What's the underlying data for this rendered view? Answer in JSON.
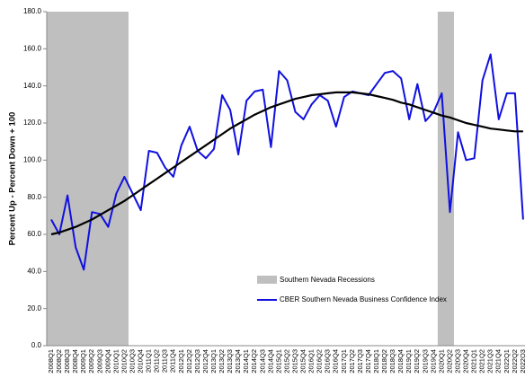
{
  "chart_data": {
    "type": "line",
    "y_label": "Percent Up - Percent Down + 100",
    "categories": [
      "2008Q1",
      "2008Q2",
      "2008Q3",
      "2008Q4",
      "2009Q1",
      "2009Q2",
      "2009Q3",
      "2009Q4",
      "2010Q1",
      "2010Q2",
      "2010Q3",
      "2010Q4",
      "2011Q1",
      "2011Q2",
      "2011Q3",
      "2011Q4",
      "2012Q1",
      "2012Q2",
      "2012Q3",
      "2012Q4",
      "2013Q1",
      "2013Q2",
      "2013Q3",
      "2013Q4",
      "2014Q1",
      "2014Q2",
      "2014Q3",
      "2014Q4",
      "2015Q1",
      "2015Q2",
      "2015Q3",
      "2015Q4",
      "2016Q1",
      "2016Q2",
      "2016Q3",
      "2016Q4",
      "2017Q1",
      "2017Q2",
      "2017Q3",
      "2017Q4",
      "2018Q1",
      "2018Q2",
      "2018Q3",
      "2018Q4",
      "2019Q1",
      "2019Q2",
      "2019Q3",
      "2019Q4",
      "2020Q1",
      "2020Q2",
      "2020Q3",
      "2020Q4",
      "2021Q1",
      "2021Q2",
      "2021Q3",
      "2021Q4",
      "2022Q1",
      "2022Q2",
      "2022Q3"
    ],
    "series": [
      {
        "name": "CBER Southern Nevada Business Confidence Index",
        "color": "#1010e0",
        "values": [
          68,
          60,
          81,
          53,
          41,
          72,
          71,
          64,
          82,
          91,
          82,
          73,
          105,
          104,
          96,
          91,
          108,
          118,
          105,
          101,
          106,
          135,
          127,
          103,
          132,
          137,
          138,
          107,
          148,
          143,
          126,
          122,
          130,
          135,
          132,
          118,
          134,
          137,
          136,
          135,
          141,
          147,
          148,
          144,
          122,
          141,
          121,
          126,
          136,
          72,
          115,
          100,
          101,
          143,
          157,
          122,
          136,
          136,
          68
        ]
      }
    ],
    "trend": {
      "color": "#000000",
      "values": [
        60,
        61,
        62.5,
        64,
        66,
        68,
        70.5,
        73,
        75.5,
        78,
        81,
        84,
        87,
        90,
        93,
        96,
        99,
        102,
        105,
        108,
        111,
        114,
        117,
        119.5,
        122,
        124.5,
        126.5,
        128.5,
        130,
        131.5,
        133,
        134,
        135,
        135.5,
        136,
        136.5,
        136.5,
        136.5,
        136,
        135.5,
        134.5,
        133.5,
        132.5,
        131,
        130,
        128.5,
        127,
        125.5,
        124,
        123,
        121.5,
        120,
        119,
        118,
        117,
        116.5,
        116,
        115.5,
        115.5
      ]
    },
    "recessions": {
      "name": "Southern Nevada Recessions",
      "color": "#bfbfbf",
      "periods": [
        [
          "2008Q1",
          "2010Q2"
        ],
        [
          "2020Q1",
          "2020Q2"
        ]
      ]
    },
    "ylim": [
      0,
      180
    ],
    "yticks": [
      {
        "value": 0,
        "label": "0.0"
      },
      {
        "value": 20,
        "label": "20.0"
      },
      {
        "value": 40,
        "label": "40.0"
      },
      {
        "value": 60,
        "label": "60.0"
      },
      {
        "value": 80,
        "label": "80.0"
      },
      {
        "value": 100,
        "label": "100.0"
      },
      {
        "value": 120,
        "label": "120.0"
      },
      {
        "value": 140,
        "label": "140.0"
      },
      {
        "value": 160,
        "label": "160.0"
      },
      {
        "value": 180,
        "label": "180.0"
      }
    ],
    "grid": false
  }
}
